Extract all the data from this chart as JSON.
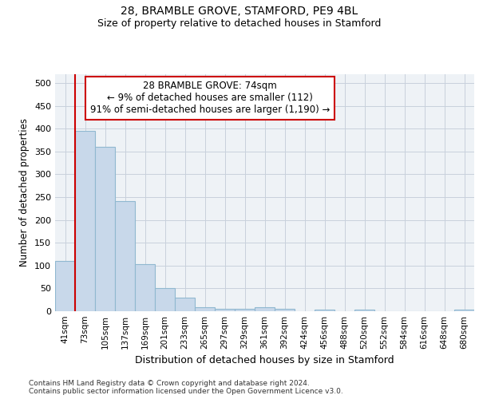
{
  "title_line1": "28, BRAMBLE GROVE, STAMFORD, PE9 4BL",
  "title_line2": "Size of property relative to detached houses in Stamford",
  "xlabel": "Distribution of detached houses by size in Stamford",
  "ylabel": "Number of detached properties",
  "footnote": "Contains HM Land Registry data © Crown copyright and database right 2024.\nContains public sector information licensed under the Open Government Licence v3.0.",
  "bin_labels": [
    "41sqm",
    "73sqm",
    "105sqm",
    "137sqm",
    "169sqm",
    "201sqm",
    "233sqm",
    "265sqm",
    "297sqm",
    "329sqm",
    "361sqm",
    "392sqm",
    "424sqm",
    "456sqm",
    "488sqm",
    "520sqm",
    "552sqm",
    "584sqm",
    "616sqm",
    "648sqm",
    "680sqm"
  ],
  "bar_values": [
    110,
    395,
    360,
    242,
    104,
    50,
    30,
    8,
    5,
    5,
    8,
    5,
    0,
    3,
    0,
    3,
    0,
    0,
    0,
    0,
    3
  ],
  "bar_color": "#c8d8ea",
  "bar_edge_color": "#90b8d0",
  "grid_color": "#c8d0dc",
  "annotation_box_text": "28 BRAMBLE GROVE: 74sqm\n← 9% of detached houses are smaller (112)\n91% of semi-detached houses are larger (1,190) →",
  "annotation_box_color": "#cc0000",
  "annotation_line_color": "#cc0000",
  "ylim": [
    0,
    520
  ],
  "yticks": [
    0,
    50,
    100,
    150,
    200,
    250,
    300,
    350,
    400,
    450,
    500
  ],
  "background_color": "#eef2f6"
}
